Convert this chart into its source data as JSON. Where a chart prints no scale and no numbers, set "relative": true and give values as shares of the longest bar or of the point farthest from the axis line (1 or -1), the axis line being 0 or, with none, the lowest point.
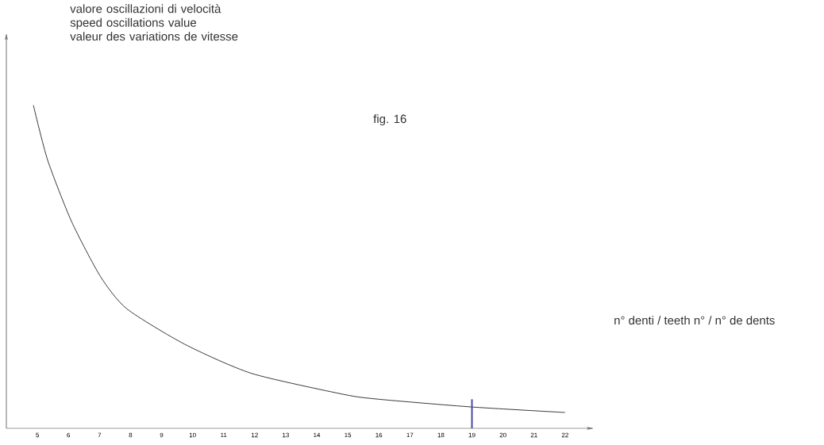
{
  "chart_data": {
    "type": "line",
    "relative": true,
    "title": "valore oscillazioni di velocità\nspeed oscillations value\nvaleur des variations de vitesse",
    "xlabel": "n° denti  /  teeth n°  /  n° de dents",
    "annotations": [
      "fig. 16"
    ],
    "x": [
      4.87,
      5.33,
      6.1,
      7.03,
      7.88,
      9.75,
      11.9,
      14.87,
      16,
      19,
      22
    ],
    "series": [
      {
        "color": "#222222",
        "values": [
          1.0,
          0.83,
          0.64,
          0.47,
          0.37,
          0.26,
          0.17,
          0.105,
          0.09,
          0.066,
          0.049
        ]
      }
    ],
    "xlim": [
      4,
      22.9
    ],
    "xticks": [
      5,
      6,
      7,
      8,
      9,
      10,
      11,
      12,
      13,
      14,
      15,
      16,
      17,
      18,
      19,
      20,
      21,
      22
    ],
    "ref_lines": [
      {
        "axis": "x",
        "value": 19,
        "color": "#4a4aa8"
      }
    ],
    "marker": "none",
    "line_style": "solid",
    "grid": false
  }
}
